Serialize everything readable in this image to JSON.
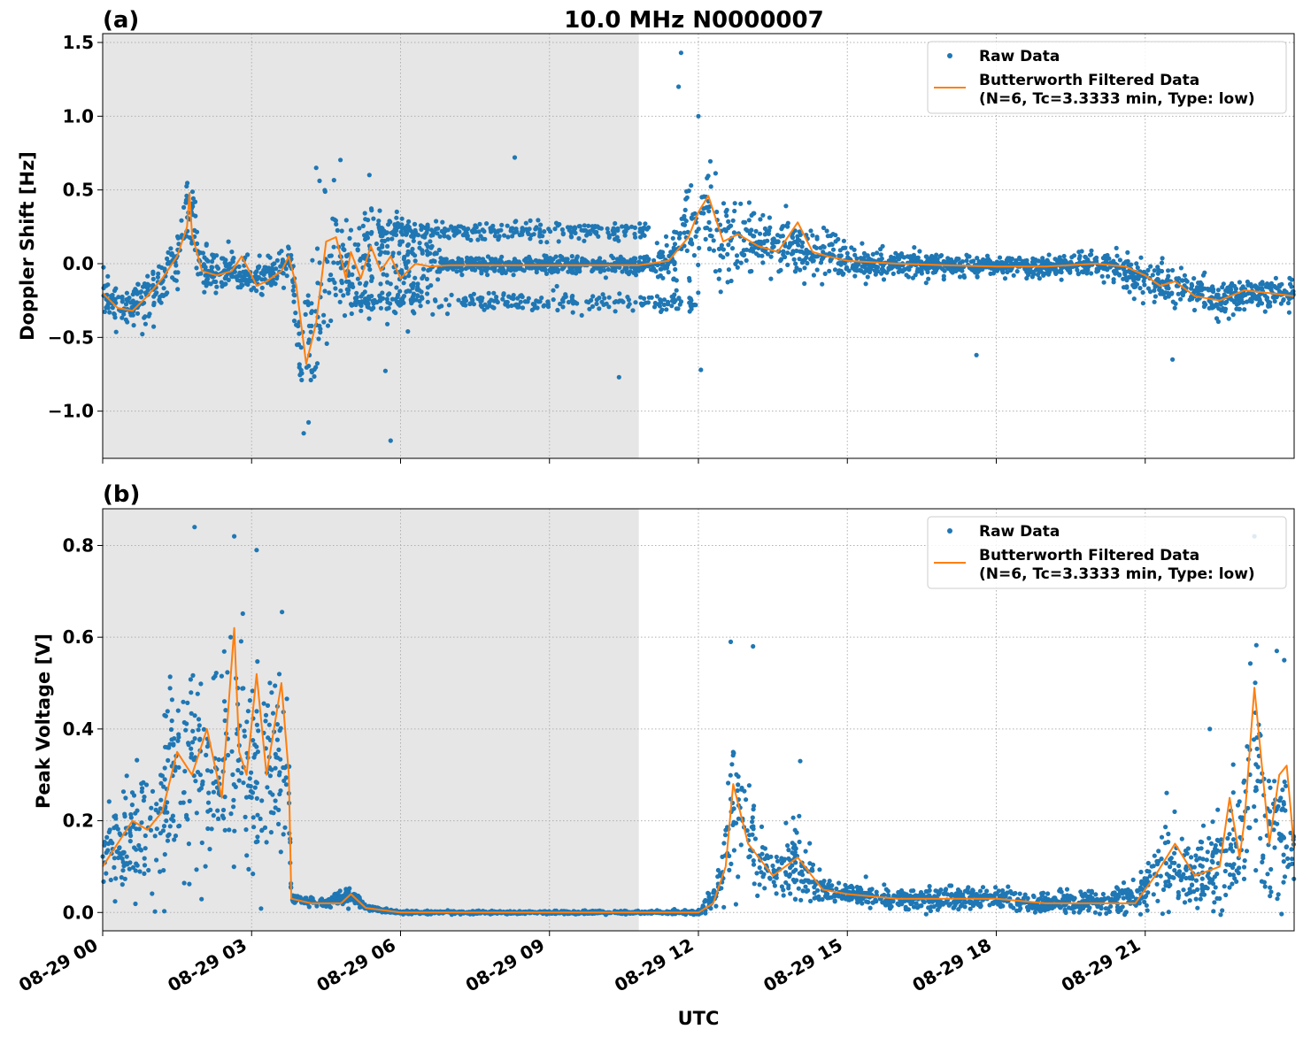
{
  "figure": {
    "title": "10.0 MHz N0000007",
    "xlabel": "UTC",
    "x_tick_labels": [
      "08-29 00",
      "08-29 03",
      "08-29 06",
      "08-29 09",
      "08-29 12",
      "08-29 15",
      "08-29 18",
      "08-29 21"
    ]
  },
  "colors": {
    "raw": "#1f77b4",
    "filtered": "#ff7f0e",
    "shade": "#e6e6e6",
    "grid": "#b0b0b0"
  },
  "chart_data": [
    {
      "panel_label": "(a)",
      "type": "scatter",
      "title": "10.0 MHz N0000007",
      "ylabel": "Doppler Shift [Hz]",
      "xlabel": "",
      "x_unit": "hours UTC on 08-29",
      "xlim": [
        0,
        24
      ],
      "ylim": [
        -1.32,
        1.56
      ],
      "x_ticks": [
        0,
        3,
        6,
        9,
        12,
        15,
        18,
        21
      ],
      "y_ticks": [
        -1.0,
        -0.5,
        0.0,
        0.5,
        1.0,
        1.5
      ],
      "y_tick_labels": [
        "−1.0",
        "−0.5",
        "0.0",
        "0.5",
        "1.0",
        "1.5"
      ],
      "shaded_interval": [
        0,
        10.8
      ],
      "grid": true,
      "legend_position": "top-right",
      "legend": [
        "Raw Data",
        "Butterworth Filtered Data",
        "(N=6, Tc=3.3333 min, Type: low)"
      ],
      "series": [
        {
          "name": "Butterworth Filtered Data",
          "kind": "line",
          "x": [
            0,
            0.3,
            0.6,
            0.9,
            1.2,
            1.5,
            1.7,
            1.75,
            1.8,
            2.0,
            2.3,
            2.6,
            2.8,
            3.0,
            3.1,
            3.3,
            3.6,
            3.75,
            3.9,
            4.1,
            4.3,
            4.5,
            4.7,
            4.9,
            5.0,
            5.2,
            5.4,
            5.6,
            5.8,
            6.0,
            6.3,
            6.6,
            7.0,
            8.0,
            9.0,
            10.0,
            10.8,
            11.4,
            11.8,
            12.0,
            12.2,
            12.5,
            12.8,
            13.2,
            13.6,
            14.0,
            14.3,
            14.6,
            15.0,
            16.0,
            17.0,
            18.0,
            19.0,
            20.0,
            20.6,
            21.0,
            21.3,
            21.6,
            22.0,
            22.5,
            23.0,
            23.5,
            24.0
          ],
          "y": [
            -0.2,
            -0.3,
            -0.32,
            -0.22,
            -0.1,
            0.05,
            0.25,
            0.48,
            0.2,
            -0.05,
            -0.08,
            -0.05,
            0.05,
            -0.08,
            -0.15,
            -0.12,
            -0.05,
            0.05,
            -0.15,
            -0.68,
            -0.4,
            0.15,
            0.18,
            -0.1,
            0.08,
            -0.1,
            0.12,
            -0.05,
            0.05,
            -0.1,
            0.0,
            -0.02,
            -0.01,
            -0.01,
            -0.01,
            -0.01,
            -0.01,
            0.02,
            0.18,
            0.35,
            0.46,
            0.15,
            0.2,
            0.12,
            0.08,
            0.28,
            0.08,
            0.05,
            0.02,
            0.0,
            -0.01,
            -0.02,
            -0.02,
            0.0,
            -0.02,
            -0.08,
            -0.15,
            -0.12,
            -0.22,
            -0.25,
            -0.18,
            -0.2,
            -0.22
          ]
        },
        {
          "name": "Raw Data",
          "kind": "scatter",
          "band_x": [
            0,
            0.5,
            1.0,
            1.5,
            1.75,
            2.0,
            2.5,
            3.0,
            3.5,
            3.8,
            4.0,
            4.3,
            4.6,
            5.0,
            5.5,
            6.0,
            7.0,
            8.0,
            9.0,
            10.0,
            11.0,
            11.5,
            12.0,
            12.5,
            13.0,
            14.0,
            15.0,
            16.0,
            17.0,
            18.0,
            19.0,
            20.0,
            21.0,
            21.5,
            22.0,
            22.5,
            23.0,
            23.5,
            24.0
          ],
          "band_center": [
            -0.2,
            -0.3,
            -0.2,
            0.0,
            0.45,
            -0.05,
            -0.05,
            -0.1,
            -0.05,
            0.0,
            -0.7,
            -0.3,
            0.05,
            0.0,
            0.0,
            -0.05,
            -0.01,
            -0.01,
            -0.01,
            -0.01,
            -0.01,
            0.05,
            0.4,
            0.15,
            0.15,
            0.1,
            0.02,
            0.0,
            -0.01,
            -0.02,
            -0.02,
            0.0,
            -0.1,
            -0.15,
            -0.2,
            -0.25,
            -0.2,
            -0.2,
            -0.22
          ],
          "band_spread": [
            0.12,
            0.1,
            0.15,
            0.2,
            0.25,
            0.15,
            0.12,
            0.12,
            0.12,
            0.15,
            0.35,
            0.45,
            0.45,
            0.45,
            0.4,
            0.35,
            0.05,
            0.05,
            0.05,
            0.05,
            0.06,
            0.15,
            0.35,
            0.25,
            0.2,
            0.15,
            0.1,
            0.08,
            0.06,
            0.06,
            0.06,
            0.08,
            0.12,
            0.12,
            0.1,
            0.1,
            0.1,
            0.1,
            0.1
          ],
          "secondary_track": {
            "x_range": [
              5.0,
              12.0
            ],
            "y_center": -0.26,
            "spread": 0.03
          },
          "secondary_track_upper": {
            "x_range": [
              5.5,
              11.0
            ],
            "y_center": 0.22,
            "spread": 0.03
          },
          "notable_points": [
            [
              11.65,
              1.43
            ],
            [
              11.6,
              1.2
            ],
            [
              12.0,
              1.0
            ],
            [
              4.3,
              0.65
            ],
            [
              5.8,
              -1.2
            ],
            [
              4.05,
              -1.15
            ],
            [
              21.55,
              -0.65
            ],
            [
              17.6,
              -0.62
            ],
            [
              12.05,
              -0.72
            ],
            [
              10.4,
              -0.77
            ],
            [
              8.3,
              0.72
            ]
          ]
        }
      ]
    },
    {
      "panel_label": "(b)",
      "type": "scatter",
      "title": "",
      "ylabel": "Peak Voltage [V]",
      "xlabel": "UTC",
      "x_unit": "hours UTC on 08-29",
      "xlim": [
        0,
        24
      ],
      "ylim": [
        -0.04,
        0.88
      ],
      "x_ticks": [
        0,
        3,
        6,
        9,
        12,
        15,
        18,
        21
      ],
      "y_ticks": [
        0.0,
        0.2,
        0.4,
        0.6,
        0.8
      ],
      "y_tick_labels": [
        "0.0",
        "0.2",
        "0.4",
        "0.6",
        "0.8"
      ],
      "shaded_interval": [
        0,
        10.8
      ],
      "grid": true,
      "legend_position": "top-right",
      "legend": [
        "Raw Data",
        "Butterworth Filtered Data",
        "(N=6, Tc=3.3333 min, Type: low)"
      ],
      "series": [
        {
          "name": "Butterworth Filtered Data",
          "kind": "line",
          "x": [
            0,
            0.3,
            0.6,
            0.9,
            1.2,
            1.5,
            1.8,
            2.1,
            2.4,
            2.65,
            2.75,
            2.9,
            3.1,
            3.3,
            3.6,
            3.75,
            3.8,
            4.2,
            4.8,
            5.0,
            5.3,
            6.0,
            7.0,
            8.0,
            9.0,
            10.0,
            11.0,
            12.0,
            12.3,
            12.55,
            12.7,
            13.0,
            13.5,
            14.0,
            14.5,
            15.0,
            16.0,
            17.0,
            18.0,
            19.0,
            20.0,
            20.8,
            21.2,
            21.6,
            22.0,
            22.5,
            22.7,
            22.9,
            23.0,
            23.2,
            23.5,
            23.7,
            23.85,
            24.0
          ],
          "y": [
            0.1,
            0.15,
            0.2,
            0.18,
            0.22,
            0.35,
            0.3,
            0.4,
            0.25,
            0.62,
            0.35,
            0.3,
            0.52,
            0.3,
            0.5,
            0.3,
            0.03,
            0.02,
            0.02,
            0.04,
            0.01,
            0.0,
            0.0,
            0.0,
            0.0,
            0.0,
            0.0,
            0.0,
            0.02,
            0.1,
            0.28,
            0.15,
            0.08,
            0.12,
            0.05,
            0.04,
            0.03,
            0.03,
            0.03,
            0.02,
            0.02,
            0.02,
            0.08,
            0.15,
            0.08,
            0.1,
            0.25,
            0.12,
            0.2,
            0.49,
            0.15,
            0.3,
            0.32,
            0.14
          ]
        },
        {
          "name": "Raw Data",
          "kind": "scatter",
          "band_x": [
            0,
            0.5,
            1.0,
            1.5,
            1.75,
            2.0,
            2.4,
            2.7,
            3.0,
            3.3,
            3.6,
            3.75,
            3.8,
            4.5,
            5.0,
            5.3,
            6.0,
            8.0,
            10.0,
            11.0,
            12.0,
            12.4,
            12.7,
            13.0,
            13.5,
            14.0,
            14.5,
            15.0,
            16.0,
            17.0,
            18.0,
            19.0,
            20.0,
            20.8,
            21.2,
            21.6,
            22.0,
            22.5,
            22.8,
            23.0,
            23.2,
            23.5,
            23.8,
            24.0
          ],
          "band_center": [
            0.12,
            0.15,
            0.2,
            0.3,
            0.35,
            0.3,
            0.3,
            0.4,
            0.3,
            0.3,
            0.35,
            0.3,
            0.03,
            0.02,
            0.04,
            0.01,
            0.0,
            0.0,
            0.0,
            0.0,
            0.0,
            0.05,
            0.25,
            0.15,
            0.08,
            0.1,
            0.05,
            0.04,
            0.03,
            0.03,
            0.03,
            0.02,
            0.02,
            0.03,
            0.08,
            0.1,
            0.08,
            0.1,
            0.15,
            0.2,
            0.35,
            0.15,
            0.18,
            0.15
          ],
          "band_spread": [
            0.08,
            0.1,
            0.15,
            0.2,
            0.25,
            0.2,
            0.2,
            0.25,
            0.2,
            0.2,
            0.2,
            0.2,
            0.01,
            0.01,
            0.02,
            0.005,
            0.003,
            0.003,
            0.003,
            0.003,
            0.005,
            0.04,
            0.15,
            0.1,
            0.05,
            0.07,
            0.03,
            0.02,
            0.02,
            0.02,
            0.02,
            0.02,
            0.02,
            0.03,
            0.06,
            0.08,
            0.06,
            0.1,
            0.12,
            0.15,
            0.25,
            0.12,
            0.15,
            0.12
          ],
          "notable_points": [
            [
              1.85,
              0.84
            ],
            [
              2.65,
              0.82
            ],
            [
              3.1,
              0.79
            ],
            [
              12.65,
              0.59
            ],
            [
              13.1,
              0.58
            ],
            [
              23.2,
              0.82
            ],
            [
              23.65,
              0.57
            ],
            [
              23.8,
              0.55
            ],
            [
              14.05,
              0.33
            ],
            [
              22.3,
              0.4
            ]
          ]
        }
      ]
    }
  ]
}
